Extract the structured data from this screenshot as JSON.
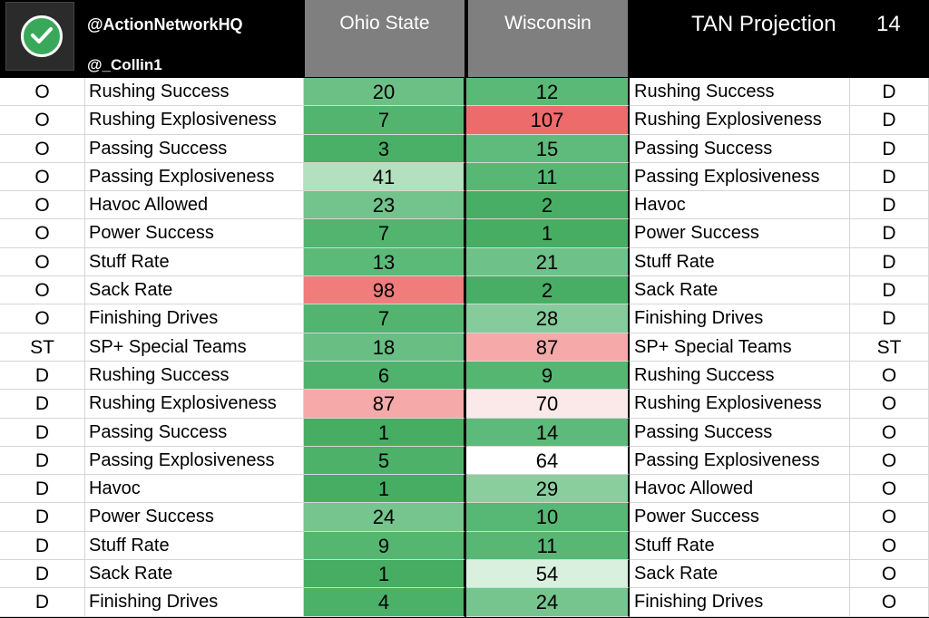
{
  "header": {
    "handle_primary": "@ActionNetworkHQ",
    "handle_secondary": "@_Collin1",
    "team_left": "Ohio State",
    "team_right": "Wisconsin",
    "projection_label": "TAN Projection",
    "projection_value": "14"
  },
  "colors": {
    "header_bg": "#000000",
    "team_header_bg": "#7f7f7f",
    "logo_green": "#3aa85a"
  },
  "rows": [
    {
      "side": "O",
      "stat": "Rushing Success",
      "osu": "20",
      "osu_color": "#6cc086",
      "wis": "12",
      "wis_color": "#5ab977",
      "stat2": "Rushing Success",
      "side2": "D"
    },
    {
      "side": "O",
      "stat": "Rushing Explosiveness",
      "osu": "7",
      "osu_color": "#52b46f",
      "wis": "107",
      "wis_color": "#ee6b6b",
      "stat2": "Rushing Explosiveness",
      "side2": "D"
    },
    {
      "side": "O",
      "stat": "Passing Success",
      "osu": "3",
      "osu_color": "#4aaf67",
      "wis": "15",
      "wis_color": "#5fbb7b",
      "stat2": "Passing Success",
      "side2": "D"
    },
    {
      "side": "O",
      "stat": "Passing Explosiveness",
      "osu": "41",
      "osu_color": "#b3e0bf",
      "wis": "11",
      "wis_color": "#58b775",
      "stat2": "Passing Explosiveness",
      "side2": "D"
    },
    {
      "side": "O",
      "stat": "Havoc Allowed",
      "osu": "23",
      "osu_color": "#73c38c",
      "wis": "2",
      "wis_color": "#48ae65",
      "stat2": "Havoc",
      "side2": "D"
    },
    {
      "side": "O",
      "stat": "Power Success",
      "osu": "7",
      "osu_color": "#52b46f",
      "wis": "1",
      "wis_color": "#46ad63",
      "stat2": "Power Success",
      "side2": "D"
    },
    {
      "side": "O",
      "stat": "Stuff Rate",
      "osu": "13",
      "osu_color": "#5cba78",
      "wis": "21",
      "wis_color": "#6ec189",
      "stat2": "Stuff Rate",
      "side2": "D"
    },
    {
      "side": "O",
      "stat": "Sack Rate",
      "osu": "98",
      "osu_color": "#f07c7c",
      "wis": "2",
      "wis_color": "#48ae65",
      "stat2": "Sack Rate",
      "side2": "D"
    },
    {
      "side": "O",
      "stat": "Finishing Drives",
      "osu": "7",
      "osu_color": "#52b46f",
      "wis": "28",
      "wis_color": "#86cb9b",
      "stat2": "Finishing Drives",
      "side2": "D"
    },
    {
      "side": "ST",
      "stat": "SP+ Special Teams",
      "osu": "18",
      "osu_color": "#68be83",
      "wis": "87",
      "wis_color": "#f5a9a9",
      "stat2": "SP+ Special Teams",
      "side2": "ST"
    },
    {
      "side": "D",
      "stat": "Rushing Success",
      "osu": "6",
      "osu_color": "#50b36d",
      "wis": "9",
      "wis_color": "#55b672",
      "stat2": "Rushing Success",
      "side2": "O"
    },
    {
      "side": "D",
      "stat": "Rushing Explosiveness",
      "osu": "87",
      "osu_color": "#f5a9a9",
      "wis": "70",
      "wis_color": "#fbe9e9",
      "stat2": "Rushing Explosiveness",
      "side2": "O"
    },
    {
      "side": "D",
      "stat": "Passing Success",
      "osu": "1",
      "osu_color": "#46ad63",
      "wis": "14",
      "wis_color": "#5eba7a",
      "stat2": "Passing Success",
      "side2": "O"
    },
    {
      "side": "D",
      "stat": "Passing Explosiveness",
      "osu": "5",
      "osu_color": "#4db16a",
      "wis": "64",
      "wis_color": "#ffffff",
      "stat2": "Passing Explosiveness",
      "side2": "O"
    },
    {
      "side": "D",
      "stat": "Havoc",
      "osu": "1",
      "osu_color": "#46ad63",
      "wis": "29",
      "wis_color": "#8ace9e",
      "stat2": "Havoc Allowed",
      "side2": "O"
    },
    {
      "side": "D",
      "stat": "Power Success",
      "osu": "24",
      "osu_color": "#76c48e",
      "wis": "10",
      "wis_color": "#57b774",
      "stat2": "Power Success",
      "side2": "O"
    },
    {
      "side": "D",
      "stat": "Stuff Rate",
      "osu": "9",
      "osu_color": "#55b672",
      "wis": "11",
      "wis_color": "#58b775",
      "stat2": "Stuff Rate",
      "side2": "O"
    },
    {
      "side": "D",
      "stat": "Sack Rate",
      "osu": "1",
      "osu_color": "#46ad63",
      "wis": "54",
      "wis_color": "#d9f0df",
      "stat2": "Sack Rate",
      "side2": "O"
    },
    {
      "side": "D",
      "stat": "Finishing Drives",
      "osu": "4",
      "osu_color": "#4bb068",
      "wis": "24",
      "wis_color": "#76c48e",
      "stat2": "Finishing Drives",
      "side2": "O"
    }
  ]
}
